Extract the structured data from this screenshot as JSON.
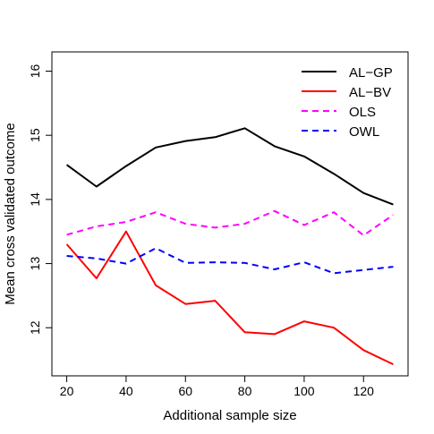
{
  "chart_data": {
    "type": "line",
    "title": "",
    "xlabel": "Additional sample size",
    "ylabel": "Mean cross validated outcome",
    "xlim": [
      15,
      135
    ],
    "ylim": [
      11.25,
      16.3
    ],
    "x": [
      20,
      30,
      40,
      50,
      60,
      70,
      80,
      90,
      100,
      110,
      120,
      130
    ],
    "x_ticks": [
      20,
      40,
      60,
      80,
      100,
      120
    ],
    "x_tick_labels": [
      "20",
      "40",
      "60",
      "80",
      "100",
      "120"
    ],
    "y_ticks": [
      12,
      13,
      14,
      15,
      16
    ],
    "y_tick_labels": [
      "12",
      "13",
      "14",
      "15",
      "16"
    ],
    "grid": false,
    "legend_position": "top-right",
    "series": [
      {
        "name": "AL−GP",
        "color": "#000000",
        "dash": "solid",
        "values": [
          14.54,
          14.2,
          14.52,
          14.81,
          14.91,
          14.97,
          15.11,
          14.83,
          14.67,
          14.4,
          14.1,
          13.92
        ]
      },
      {
        "name": "AL−BV",
        "color": "#ff0000",
        "dash": "solid",
        "values": [
          13.3,
          12.77,
          13.5,
          12.66,
          12.37,
          12.42,
          11.93,
          11.9,
          12.1,
          12.0,
          11.65,
          11.43
        ]
      },
      {
        "name": "OLS",
        "color": "#ff00ff",
        "dash": "dashed",
        "values": [
          13.45,
          13.58,
          13.65,
          13.8,
          13.62,
          13.56,
          13.62,
          13.82,
          13.6,
          13.8,
          13.44,
          13.76
        ]
      },
      {
        "name": "OWL",
        "color": "#0000ff",
        "dash": "dashed",
        "values": [
          13.12,
          13.08,
          13.0,
          13.24,
          13.01,
          13.02,
          13.01,
          12.91,
          13.02,
          12.85,
          12.9,
          12.95
        ]
      }
    ]
  }
}
